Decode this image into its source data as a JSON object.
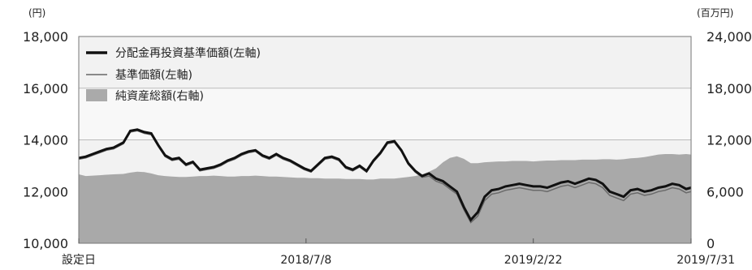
{
  "chart_data": {
    "type": "line",
    "left_unit": "(円)",
    "right_unit": "(百万円)",
    "left_axis": {
      "ylim": [
        10000,
        18000
      ],
      "ticks": [
        "10,000",
        "12,000",
        "14,000",
        "16,000",
        "18,000"
      ],
      "tick_values": [
        10000,
        12000,
        14000,
        16000,
        18000
      ]
    },
    "right_axis": {
      "ylim": [
        0,
        24000
      ],
      "ticks": [
        "0",
        "6,000",
        "12,000",
        "18,000",
        "24,000"
      ],
      "tick_values": [
        0,
        6000,
        12000,
        18000,
        24000
      ]
    },
    "x_ticks": [
      "設定日",
      "2018/7/8",
      "2019/2/22",
      "2019/7/31"
    ],
    "x_tick_dates": [
      "2017/11/21",
      "2018/7/8",
      "2019/2/22",
      "2019/7/31"
    ],
    "legend": [
      {
        "label": "分配金再投資基準価額(左軸)",
        "style": "thick-line",
        "color": "#111111"
      },
      {
        "label": "基準価額(左軸)",
        "style": "thin-line",
        "color": "#666666"
      },
      {
        "label": "純資産総額(右軸)",
        "style": "area",
        "color": "#aaaaaa"
      }
    ],
    "x": [
      "2017/11/21",
      "2017/11/28",
      "2017/12/05",
      "2017/12/12",
      "2017/12/19",
      "2017/12/26",
      "2018/01/05",
      "2018/01/12",
      "2018/01/19",
      "2018/01/26",
      "2018/02/02",
      "2018/02/09",
      "2018/02/16",
      "2018/02/23",
      "2018/03/02",
      "2018/03/09",
      "2018/03/16",
      "2018/03/23",
      "2018/03/30",
      "2018/04/06",
      "2018/04/13",
      "2018/04/20",
      "2018/04/27",
      "2018/05/04",
      "2018/05/11",
      "2018/05/18",
      "2018/05/25",
      "2018/06/01",
      "2018/06/08",
      "2018/06/15",
      "2018/06/22",
      "2018/06/29",
      "2018/07/06",
      "2018/07/13",
      "2018/07/20",
      "2018/07/27",
      "2018/08/03",
      "2018/08/10",
      "2018/08/17",
      "2018/08/24",
      "2018/08/31",
      "2018/09/07",
      "2018/09/14",
      "2018/09/21",
      "2018/09/28",
      "2018/10/05",
      "2018/10/12",
      "2018/10/19",
      "2018/10/26",
      "2018/11/02",
      "2018/11/09",
      "2018/11/16",
      "2018/11/23",
      "2018/11/30",
      "2018/12/07",
      "2018/12/14",
      "2018/12/21",
      "2018/12/28",
      "2019/01/04",
      "2019/01/11",
      "2019/01/18",
      "2019/01/25",
      "2019/02/01",
      "2019/02/08",
      "2019/02/15",
      "2019/02/22",
      "2019/03/01",
      "2019/03/08",
      "2019/03/15",
      "2019/03/22",
      "2019/03/29",
      "2019/04/05",
      "2019/04/12",
      "2019/04/19",
      "2019/04/26",
      "2019/05/03",
      "2019/05/10",
      "2019/05/17",
      "2019/05/24",
      "2019/05/31",
      "2019/06/07",
      "2019/06/14",
      "2019/06/21",
      "2019/06/28",
      "2019/07/05",
      "2019/07/12",
      "2019/07/19",
      "2019/07/26",
      "2019/07/31"
    ],
    "series": [
      {
        "name": "分配金再投資基準価額(左軸)",
        "axis": "left",
        "values": [
          13300,
          13350,
          13450,
          13550,
          13650,
          13700,
          13900,
          14350,
          14400,
          14300,
          14250,
          13800,
          13400,
          13250,
          13300,
          13050,
          13150,
          12850,
          12900,
          12950,
          13050,
          13200,
          13300,
          13450,
          13550,
          13600,
          13400,
          13300,
          13450,
          13300,
          13200,
          13050,
          12900,
          12800,
          13050,
          13300,
          13350,
          13250,
          12950,
          12850,
          13000,
          12800,
          13200,
          13500,
          13900,
          13950,
          13600,
          13100,
          12800,
          12600,
          12700,
          12500,
          12400,
          12200,
          12000,
          11400,
          10900,
          11200,
          11800,
          12050,
          12100,
          12200,
          12250,
          12300,
          12250,
          12200,
          12200,
          12150,
          12250,
          12350,
          12400,
          12300,
          12400,
          12500,
          12450,
          12300,
          12000,
          11900,
          11800,
          12050,
          12100,
          12000,
          12050,
          12150,
          12200,
          12300,
          12250,
          12100,
          12150
        ]
      },
      {
        "name": "基準価額(左軸)",
        "axis": "left",
        "values": [
          13250,
          13300,
          13400,
          13500,
          13600,
          13650,
          13850,
          14300,
          14350,
          14250,
          14200,
          13750,
          13350,
          13200,
          13250,
          13000,
          13100,
          12800,
          12850,
          12900,
          13000,
          13150,
          13250,
          13400,
          13500,
          13550,
          13350,
          13250,
          13400,
          13250,
          13150,
          13000,
          12850,
          12750,
          13000,
          13250,
          13300,
          13200,
          12900,
          12800,
          12950,
          12750,
          13150,
          13450,
          13850,
          13900,
          13550,
          13050,
          12750,
          12550,
          12600,
          12400,
          12300,
          12100,
          11900,
          11300,
          10800,
          11050,
          11650,
          11900,
          11950,
          12050,
          12100,
          12150,
          12100,
          12050,
          12050,
          12000,
          12100,
          12200,
          12250,
          12150,
          12250,
          12350,
          12300,
          12150,
          11850,
          11750,
          11650,
          11900,
          11950,
          11850,
          11900,
          12000,
          12050,
          12150,
          12100,
          11950,
          12000
        ]
      },
      {
        "name": "純資産総額(右軸)",
        "axis": "right",
        "values": [
          8000,
          7800,
          7850,
          7900,
          7950,
          8000,
          8050,
          8200,
          8300,
          8250,
          8100,
          7900,
          7800,
          7750,
          7700,
          7700,
          7750,
          7800,
          7800,
          7850,
          7800,
          7750,
          7750,
          7800,
          7800,
          7850,
          7800,
          7750,
          7750,
          7700,
          7650,
          7600,
          7600,
          7550,
          7550,
          7500,
          7500,
          7500,
          7450,
          7450,
          7450,
          7400,
          7400,
          7500,
          7500,
          7500,
          7600,
          7700,
          7800,
          8000,
          8300,
          8700,
          9400,
          9900,
          10100,
          9800,
          9300,
          9300,
          9400,
          9450,
          9500,
          9500,
          9550,
          9550,
          9550,
          9500,
          9550,
          9600,
          9600,
          9650,
          9650,
          9650,
          9700,
          9700,
          9700,
          9750,
          9750,
          9700,
          9750,
          9850,
          9900,
          10000,
          10150,
          10300,
          10350,
          10350,
          10300,
          10350,
          10300
        ]
      }
    ]
  }
}
